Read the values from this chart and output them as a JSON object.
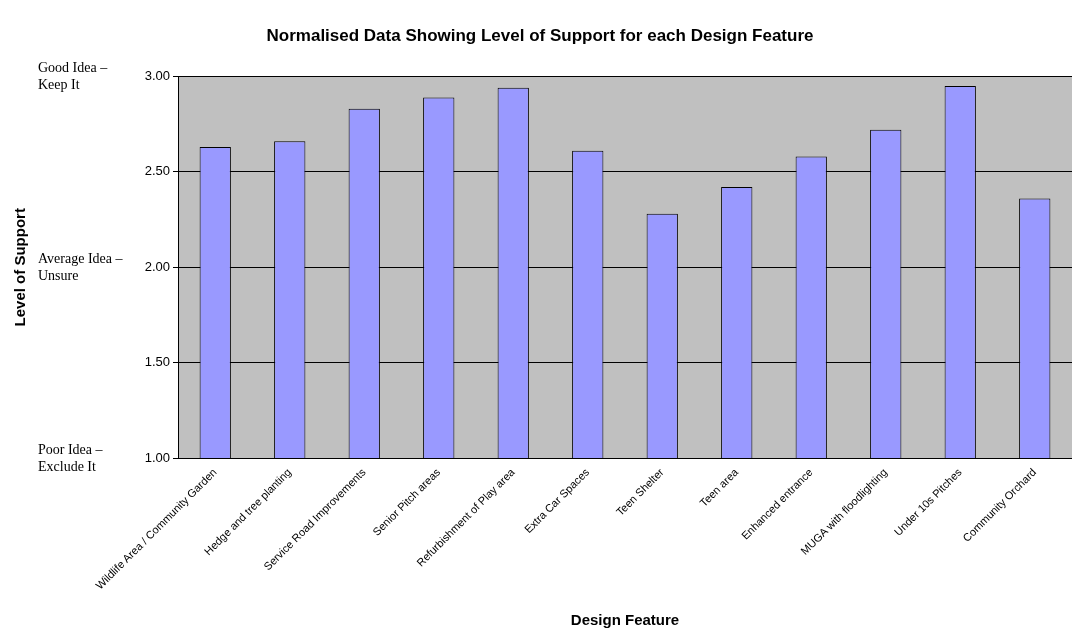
{
  "chart_data": {
    "type": "bar",
    "title": "Normalised Data Showing Level of Support for each Design Feature",
    "xlabel": "Design Feature",
    "ylabel": "Level of Support",
    "categories": [
      "Wildlife Area / Community Garden",
      "Hedge and tree planting",
      "Service Road Improvements",
      "Senior Pitch areas",
      "Refurbishment of Play area",
      "Extra Car Spaces",
      "Teen Shelter",
      "Teen area",
      "Enhanced entrance",
      "MUGA with floodlighting",
      "Under 10s Pitches",
      "Community Orchard"
    ],
    "values": [
      2.63,
      2.66,
      2.83,
      2.89,
      2.94,
      2.61,
      2.28,
      2.42,
      2.58,
      2.72,
      2.95,
      2.36
    ],
    "color": "#9999ff",
    "ylim": [
      1,
      3
    ],
    "yticks": [
      {
        "value": 1,
        "label": "1.00"
      },
      {
        "value": 1.5,
        "label": "1.50"
      },
      {
        "value": 2,
        "label": "2.00"
      },
      {
        "value": 2.5,
        "label": "2.50"
      },
      {
        "value": 3,
        "label": "3.00"
      }
    ],
    "annotations": [
      "Good Idea – Keep It",
      "Average Idea – Unsure",
      "Poor Idea – Exclude It"
    ],
    "grid": "y",
    "legend": false
  }
}
